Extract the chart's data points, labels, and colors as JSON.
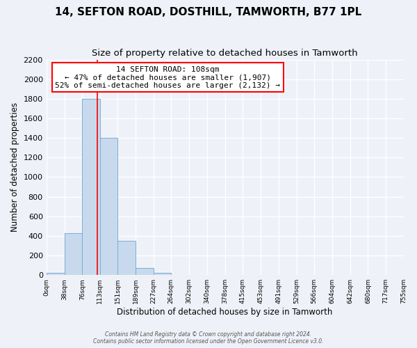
{
  "title": "14, SEFTON ROAD, DOSTHILL, TAMWORTH, B77 1PL",
  "subtitle": "Size of property relative to detached houses in Tamworth",
  "xlabel": "Distribution of detached houses by size in Tamworth",
  "ylabel": "Number of detached properties",
  "bin_edges": [
    0,
    38,
    76,
    113,
    151,
    189,
    227,
    264,
    302,
    340,
    378,
    415,
    453,
    491,
    529,
    566,
    604,
    642,
    680,
    717,
    755
  ],
  "bar_heights": [
    20,
    430,
    1800,
    1400,
    350,
    75,
    25,
    0,
    0,
    0,
    0,
    0,
    0,
    0,
    0,
    0,
    0,
    0,
    0,
    0
  ],
  "bar_color": "#c8d9ed",
  "bar_edge_color": "#7aaed4",
  "vline_x": 108,
  "vline_color": "red",
  "annotation_title": "14 SEFTON ROAD: 108sqm",
  "annotation_line1": "← 47% of detached houses are smaller (1,907)",
  "annotation_line2": "52% of semi-detached houses are larger (2,132) →",
  "annotation_box_color": "white",
  "annotation_box_edge": "red",
  "ylim": [
    0,
    2200
  ],
  "yticks": [
    0,
    200,
    400,
    600,
    800,
    1000,
    1200,
    1400,
    1600,
    1800,
    2000,
    2200
  ],
  "xtick_labels": [
    "0sqm",
    "38sqm",
    "76sqm",
    "113sqm",
    "151sqm",
    "189sqm",
    "227sqm",
    "264sqm",
    "302sqm",
    "340sqm",
    "378sqm",
    "415sqm",
    "453sqm",
    "491sqm",
    "529sqm",
    "566sqm",
    "604sqm",
    "642sqm",
    "680sqm",
    "717sqm",
    "755sqm"
  ],
  "footer1": "Contains HM Land Registry data © Crown copyright and database right 2024.",
  "footer2": "Contains public sector information licensed under the Open Government Licence v3.0.",
  "bg_color": "#eef2f8",
  "title_fontsize": 11,
  "subtitle_fontsize": 9.5
}
